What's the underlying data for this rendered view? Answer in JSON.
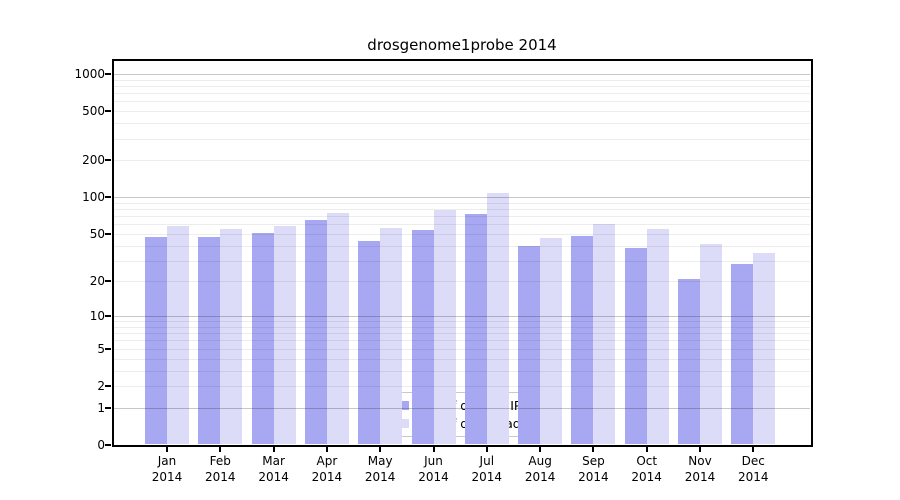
{
  "chart_data": {
    "type": "bar",
    "title": "drosgenome1probe 2014",
    "yscale": "log1p",
    "grid": true,
    "legend_position": "lower-center-inside",
    "year": "2014",
    "categories": [
      "Jan",
      "Feb",
      "Mar",
      "Apr",
      "May",
      "Jun",
      "Jul",
      "Aug",
      "Sep",
      "Oct",
      "Nov",
      "Dec"
    ],
    "series": [
      {
        "name": "Nb of distinct IPs",
        "color": "#a8a8f2",
        "values": [
          47,
          47,
          51,
          65,
          44,
          54,
          73,
          40,
          48,
          38,
          21,
          28
        ]
      },
      {
        "name": "Nb of downloads",
        "color": "#dcdcf9",
        "values": [
          58,
          55,
          58,
          74,
          56,
          78,
          108,
          46,
          60,
          55,
          41,
          35
        ]
      }
    ],
    "y_ticks": [
      0,
      1,
      2,
      5,
      10,
      20,
      50,
      100,
      200,
      500,
      1000
    ],
    "ylim": [
      0,
      1296
    ]
  }
}
